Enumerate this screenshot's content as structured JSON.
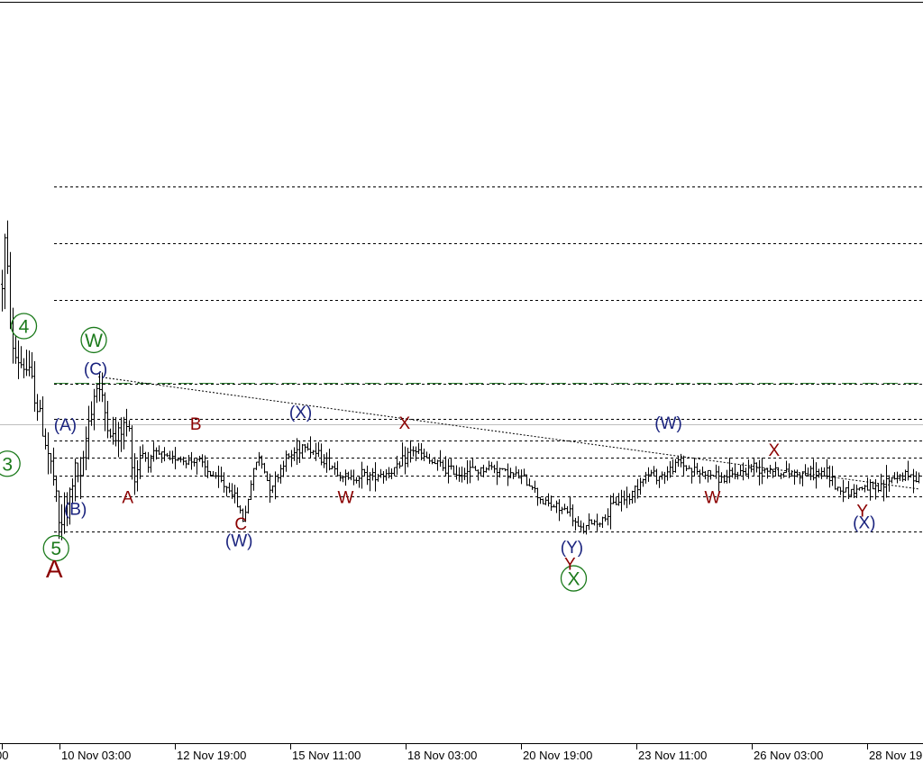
{
  "chart_data": {
    "type": "ohlc",
    "title": "",
    "xlabel": "",
    "ylabel": "",
    "grid": false,
    "colors": {
      "background": "#ffffff",
      "bars": "#000000",
      "level_lines": "#000000",
      "dashed_level": "#2e7d32",
      "current_price_line": "#bdbdbd",
      "trendline": "#000000",
      "primary_labels": "#1a237e",
      "minor_labels": "#8b0000",
      "circle_labels": "#1b7a1b",
      "major_label": "#8b0000"
    },
    "x_tick_labels": [
      "00",
      "10 Nov 03:00",
      "12 Nov 19:00",
      "15 Nov 11:00",
      "18 Nov 03:00",
      "20 Nov 19:00",
      "23 Nov 11:00",
      "26 Nov 03:00",
      "28 Nov 19"
    ],
    "y_range": [
      0,
      1
    ],
    "horizontal_levels": [
      {
        "price": 0.826,
        "style": "dotted"
      },
      {
        "price": 0.731,
        "style": "dotted"
      },
      {
        "price": 0.637,
        "style": "dotted"
      },
      {
        "price": 0.498,
        "style": "dotted"
      },
      {
        "price": 0.441,
        "style": "dotted"
      },
      {
        "price": 0.405,
        "style": "dotted"
      },
      {
        "price": 0.376,
        "style": "dotted"
      },
      {
        "price": 0.347,
        "style": "dotted"
      },
      {
        "price": 0.312,
        "style": "dotted"
      },
      {
        "price": 0.254,
        "style": "dotted"
      }
    ],
    "dashed_level": {
      "price": 0.5,
      "style": "long-dash"
    },
    "current_price_level": {
      "price": 0.432
    },
    "trendline": {
      "from": {
        "t": 0.107,
        "price": 0.51
      },
      "to": {
        "t": 1.0,
        "price": 0.324
      }
    },
    "series": [
      {
        "name": "",
        "points": [
          [
            0.0,
            0.58
          ],
          [
            0.004,
            0.75
          ],
          [
            0.009,
            0.66
          ],
          [
            0.013,
            0.55
          ],
          [
            0.018,
            0.54
          ],
          [
            0.024,
            0.53
          ],
          [
            0.03,
            0.52
          ],
          [
            0.036,
            0.49
          ],
          [
            0.042,
            0.45
          ],
          [
            0.048,
            0.41
          ],
          [
            0.054,
            0.37
          ],
          [
            0.059,
            0.33
          ],
          [
            0.064,
            0.26
          ],
          [
            0.07,
            0.28
          ],
          [
            0.076,
            0.32
          ],
          [
            0.082,
            0.36
          ],
          [
            0.088,
            0.33
          ],
          [
            0.094,
            0.42
          ],
          [
            0.1,
            0.47
          ],
          [
            0.106,
            0.5
          ],
          [
            0.112,
            0.46
          ],
          [
            0.118,
            0.43
          ],
          [
            0.124,
            0.4
          ],
          [
            0.13,
            0.42
          ],
          [
            0.136,
            0.43
          ],
          [
            0.14,
            0.42
          ],
          [
            0.146,
            0.34
          ],
          [
            0.153,
            0.39
          ],
          [
            0.16,
            0.37
          ],
          [
            0.168,
            0.38
          ],
          [
            0.176,
            0.38
          ],
          [
            0.184,
            0.37
          ],
          [
            0.192,
            0.38
          ],
          [
            0.2,
            0.37
          ],
          [
            0.208,
            0.37
          ],
          [
            0.214,
            0.375
          ],
          [
            0.22,
            0.36
          ],
          [
            0.228,
            0.35
          ],
          [
            0.236,
            0.34
          ],
          [
            0.244,
            0.33
          ],
          [
            0.252,
            0.32
          ],
          [
            0.26,
            0.29
          ],
          [
            0.265,
            0.27
          ],
          [
            0.272,
            0.33
          ],
          [
            0.28,
            0.38
          ],
          [
            0.286,
            0.36
          ],
          [
            0.292,
            0.33
          ],
          [
            0.3,
            0.34
          ],
          [
            0.308,
            0.37
          ],
          [
            0.316,
            0.38
          ],
          [
            0.324,
            0.39
          ],
          [
            0.33,
            0.4
          ],
          [
            0.338,
            0.39
          ],
          [
            0.346,
            0.38
          ],
          [
            0.354,
            0.37
          ],
          [
            0.362,
            0.36
          ],
          [
            0.37,
            0.35
          ],
          [
            0.378,
            0.34
          ],
          [
            0.386,
            0.345
          ],
          [
            0.394,
            0.35
          ],
          [
            0.402,
            0.345
          ],
          [
            0.41,
            0.35
          ],
          [
            0.418,
            0.35
          ],
          [
            0.426,
            0.355
          ],
          [
            0.434,
            0.36
          ],
          [
            0.442,
            0.38
          ],
          [
            0.45,
            0.39
          ],
          [
            0.458,
            0.38
          ],
          [
            0.466,
            0.37
          ],
          [
            0.474,
            0.365
          ],
          [
            0.482,
            0.36
          ],
          [
            0.49,
            0.355
          ],
          [
            0.498,
            0.35
          ],
          [
            0.506,
            0.355
          ],
          [
            0.514,
            0.355
          ],
          [
            0.522,
            0.355
          ],
          [
            0.53,
            0.36
          ],
          [
            0.538,
            0.36
          ],
          [
            0.546,
            0.355
          ],
          [
            0.554,
            0.35
          ],
          [
            0.562,
            0.345
          ],
          [
            0.57,
            0.34
          ],
          [
            0.578,
            0.33
          ],
          [
            0.586,
            0.31
          ],
          [
            0.594,
            0.3
          ],
          [
            0.602,
            0.295
          ],
          [
            0.61,
            0.29
          ],
          [
            0.618,
            0.29
          ],
          [
            0.624,
            0.27
          ],
          [
            0.63,
            0.255
          ],
          [
            0.636,
            0.26
          ],
          [
            0.644,
            0.27
          ],
          [
            0.652,
            0.27
          ],
          [
            0.66,
            0.28
          ],
          [
            0.668,
            0.3
          ],
          [
            0.676,
            0.31
          ],
          [
            0.684,
            0.31
          ],
          [
            0.692,
            0.33
          ],
          [
            0.7,
            0.345
          ],
          [
            0.708,
            0.35
          ],
          [
            0.716,
            0.345
          ],
          [
            0.724,
            0.35
          ],
          [
            0.732,
            0.36
          ],
          [
            0.738,
            0.37
          ],
          [
            0.746,
            0.36
          ],
          [
            0.754,
            0.355
          ],
          [
            0.762,
            0.35
          ],
          [
            0.77,
            0.35
          ],
          [
            0.778,
            0.345
          ],
          [
            0.786,
            0.34
          ],
          [
            0.794,
            0.345
          ],
          [
            0.802,
            0.35
          ],
          [
            0.81,
            0.355
          ],
          [
            0.818,
            0.36
          ],
          [
            0.826,
            0.36
          ],
          [
            0.834,
            0.36
          ],
          [
            0.842,
            0.355
          ],
          [
            0.85,
            0.35
          ],
          [
            0.858,
            0.35
          ],
          [
            0.866,
            0.35
          ],
          [
            0.874,
            0.35
          ],
          [
            0.882,
            0.35
          ],
          [
            0.89,
            0.35
          ],
          [
            0.9,
            0.35
          ],
          [
            0.91,
            0.325
          ],
          [
            0.918,
            0.325
          ],
          [
            0.926,
            0.32
          ],
          [
            0.934,
            0.325
          ],
          [
            0.942,
            0.33
          ],
          [
            0.95,
            0.32
          ],
          [
            0.958,
            0.325
          ],
          [
            0.966,
            0.34
          ],
          [
            0.974,
            0.345
          ],
          [
            0.982,
            0.345
          ],
          [
            0.99,
            0.345
          ],
          [
            1.0,
            0.345
          ]
        ]
      }
    ],
    "annotations": [
      {
        "text": "4",
        "style": "circle",
        "t": 0.026,
        "price": 0.594
      },
      {
        "text": "W",
        "style": "circle",
        "t": 0.102,
        "price": 0.571
      },
      {
        "text": "3",
        "style": "circle",
        "t": 0.008,
        "price": 0.366
      },
      {
        "text": "5",
        "style": "circle",
        "t": 0.061,
        "price": 0.226
      },
      {
        "text": "X",
        "style": "circle",
        "t": 0.624,
        "price": 0.176
      },
      {
        "text": "A",
        "style": "major",
        "t": 0.059,
        "price": 0.192
      },
      {
        "text": "(C)",
        "style": "primary",
        "t": 0.104,
        "price": 0.523
      },
      {
        "text": "(A)",
        "style": "primary",
        "t": 0.071,
        "price": 0.431
      },
      {
        "text": "(B)",
        "style": "primary",
        "t": 0.082,
        "price": 0.291
      },
      {
        "text": "(X)",
        "style": "primary",
        "t": 0.327,
        "price": 0.452
      },
      {
        "text": "(W)",
        "style": "primary",
        "t": 0.26,
        "price": 0.239
      },
      {
        "text": "(Y)",
        "style": "primary",
        "t": 0.622,
        "price": 0.228
      },
      {
        "text": "(W)",
        "style": "primary",
        "t": 0.727,
        "price": 0.434
      },
      {
        "text": "(X)",
        "style": "primary",
        "t": 0.94,
        "price": 0.269
      },
      {
        "text": "B",
        "style": "minor",
        "t": 0.213,
        "price": 0.432
      },
      {
        "text": "X",
        "style": "minor",
        "t": 0.44,
        "price": 0.434
      },
      {
        "text": "X",
        "style": "minor",
        "t": 0.842,
        "price": 0.389
      },
      {
        "text": "A",
        "style": "minor",
        "t": 0.139,
        "price": 0.311
      },
      {
        "text": "W",
        "style": "minor",
        "t": 0.376,
        "price": 0.311
      },
      {
        "text": "W",
        "style": "minor",
        "t": 0.775,
        "price": 0.311
      },
      {
        "text": "C",
        "style": "minor",
        "t": 0.262,
        "price": 0.267
      },
      {
        "text": "Y",
        "style": "minor",
        "t": 0.62,
        "price": 0.2
      },
      {
        "text": "Y",
        "style": "minor",
        "t": 0.938,
        "price": 0.288
      }
    ]
  }
}
